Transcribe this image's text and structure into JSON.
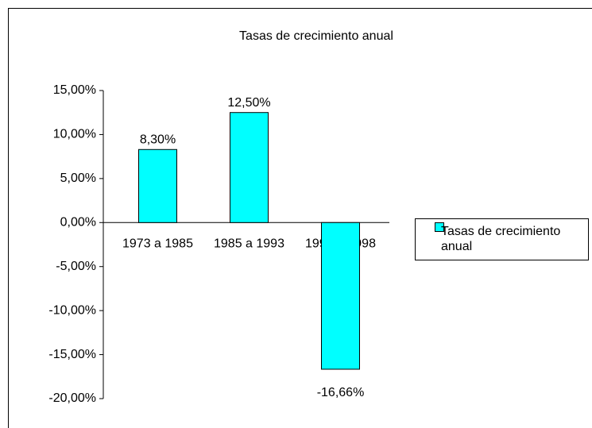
{
  "chart_data": {
    "type": "bar",
    "title": "Tasas de crecimiento anual",
    "categories": [
      "1973 a 1985",
      "1985 a 1993",
      "1993 a 1998"
    ],
    "series": [
      {
        "name": "Tasas de crecimiento anual",
        "color": "#00ffff",
        "values": [
          8.3,
          12.5,
          -16.66
        ],
        "value_labels": [
          "8,30%",
          "12,50%",
          "-16,66%"
        ]
      }
    ],
    "ylim": [
      -20,
      15
    ],
    "yticks": [
      {
        "value": -20,
        "label": "-20,00%"
      },
      {
        "value": -15,
        "label": "-15,00%"
      },
      {
        "value": -10,
        "label": "-10,00%"
      },
      {
        "value": -5,
        "label": "-5,00%"
      },
      {
        "value": 0,
        "label": "0,00%"
      },
      {
        "value": 5,
        "label": "5,00%"
      },
      {
        "value": 10,
        "label": "10,00%"
      },
      {
        "value": 15,
        "label": "15,00%"
      }
    ],
    "legend": "right"
  }
}
